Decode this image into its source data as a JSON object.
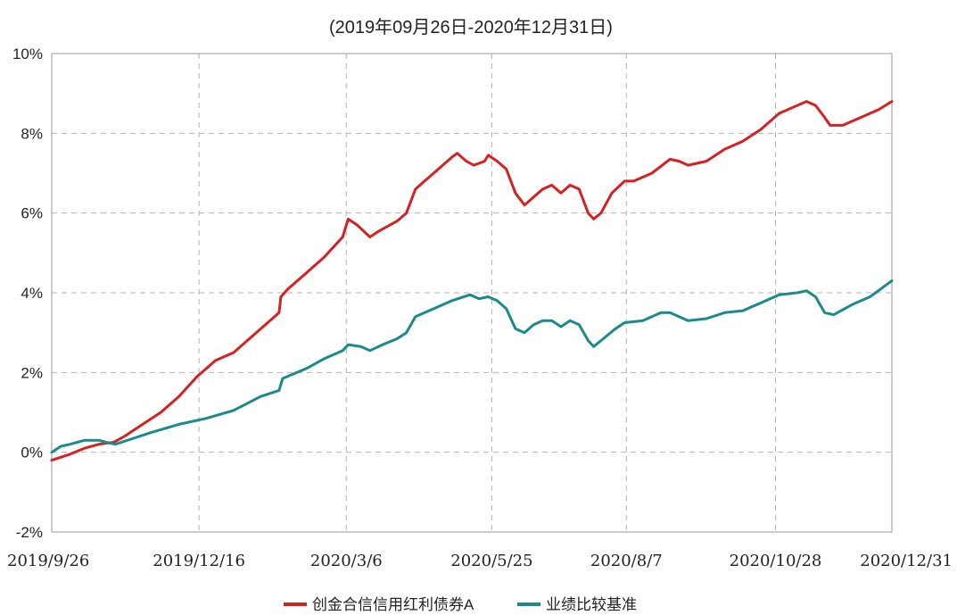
{
  "chart_data": {
    "type": "line",
    "title": "(2019年09月26日-2020年12月31日)",
    "xlabel": "",
    "ylabel": "",
    "ylim": [
      -2,
      10
    ],
    "y_ticks": [
      "10%",
      "8%",
      "6%",
      "4%",
      "2%",
      "0%",
      "-2%"
    ],
    "y_tick_values": [
      10,
      8,
      6,
      4,
      2,
      0,
      -2
    ],
    "x_ticks": [
      "2019/9/26",
      "2019/12/16",
      "2020/3/6",
      "2020/5/25",
      "2020/8/7",
      "2020/10/28",
      "2020/12/31"
    ],
    "x_tick_days": [
      0,
      81,
      162,
      242,
      316,
      398,
      462
    ],
    "x_range_days": [
      0,
      462
    ],
    "grid": true,
    "legend_position": "bottom",
    "series": [
      {
        "name": "创金合信信用红利债券A",
        "color": "#d62022",
        "points": [
          [
            0,
            -0.2
          ],
          [
            10,
            -0.05
          ],
          [
            18,
            0.1
          ],
          [
            26,
            0.2
          ],
          [
            34,
            0.25
          ],
          [
            40,
            0.4
          ],
          [
            50,
            0.7
          ],
          [
            60,
            1.0
          ],
          [
            70,
            1.4
          ],
          [
            80,
            1.9
          ],
          [
            85,
            2.1
          ],
          [
            90,
            2.3
          ],
          [
            100,
            2.5
          ],
          [
            110,
            2.9
          ],
          [
            120,
            3.3
          ],
          [
            125,
            3.5
          ],
          [
            126,
            3.9
          ],
          [
            130,
            4.1
          ],
          [
            140,
            4.5
          ],
          [
            150,
            4.9
          ],
          [
            160,
            5.4
          ],
          [
            163,
            5.85
          ],
          [
            168,
            5.7
          ],
          [
            175,
            5.4
          ],
          [
            180,
            5.55
          ],
          [
            190,
            5.8
          ],
          [
            195,
            6.0
          ],
          [
            200,
            6.6
          ],
          [
            205,
            6.8
          ],
          [
            210,
            7.0
          ],
          [
            215,
            7.2
          ],
          [
            220,
            7.4
          ],
          [
            223,
            7.5
          ],
          [
            228,
            7.3
          ],
          [
            232,
            7.2
          ],
          [
            238,
            7.3
          ],
          [
            240,
            7.45
          ],
          [
            245,
            7.3
          ],
          [
            250,
            7.1
          ],
          [
            255,
            6.5
          ],
          [
            260,
            6.2
          ],
          [
            265,
            6.4
          ],
          [
            270,
            6.6
          ],
          [
            275,
            6.7
          ],
          [
            280,
            6.5
          ],
          [
            285,
            6.7
          ],
          [
            290,
            6.6
          ],
          [
            295,
            6.0
          ],
          [
            298,
            5.85
          ],
          [
            302,
            6.0
          ],
          [
            308,
            6.5
          ],
          [
            315,
            6.8
          ],
          [
            320,
            6.8
          ],
          [
            330,
            7.0
          ],
          [
            340,
            7.35
          ],
          [
            345,
            7.3
          ],
          [
            350,
            7.2
          ],
          [
            360,
            7.3
          ],
          [
            370,
            7.6
          ],
          [
            380,
            7.8
          ],
          [
            390,
            8.1
          ],
          [
            400,
            8.5
          ],
          [
            410,
            8.7
          ],
          [
            415,
            8.8
          ],
          [
            420,
            8.7
          ],
          [
            425,
            8.4
          ],
          [
            428,
            8.2
          ],
          [
            435,
            8.2
          ],
          [
            445,
            8.4
          ],
          [
            455,
            8.6
          ],
          [
            462,
            8.8
          ]
        ]
      },
      {
        "name": "业绩比较基准",
        "color": "#1a8a8a",
        "points": [
          [
            0,
            0.0
          ],
          [
            5,
            0.15
          ],
          [
            10,
            0.2
          ],
          [
            18,
            0.3
          ],
          [
            26,
            0.3
          ],
          [
            30,
            0.25
          ],
          [
            35,
            0.2
          ],
          [
            45,
            0.35
          ],
          [
            55,
            0.5
          ],
          [
            70,
            0.7
          ],
          [
            85,
            0.85
          ],
          [
            100,
            1.05
          ],
          [
            115,
            1.4
          ],
          [
            125,
            1.55
          ],
          [
            127,
            1.85
          ],
          [
            140,
            2.1
          ],
          [
            150,
            2.35
          ],
          [
            160,
            2.55
          ],
          [
            163,
            2.7
          ],
          [
            170,
            2.65
          ],
          [
            175,
            2.55
          ],
          [
            182,
            2.7
          ],
          [
            190,
            2.85
          ],
          [
            195,
            3.0
          ],
          [
            200,
            3.4
          ],
          [
            210,
            3.6
          ],
          [
            220,
            3.8
          ],
          [
            230,
            3.95
          ],
          [
            235,
            3.85
          ],
          [
            240,
            3.9
          ],
          [
            245,
            3.8
          ],
          [
            250,
            3.6
          ],
          [
            255,
            3.1
          ],
          [
            260,
            3.0
          ],
          [
            265,
            3.2
          ],
          [
            270,
            3.3
          ],
          [
            275,
            3.3
          ],
          [
            280,
            3.15
          ],
          [
            285,
            3.3
          ],
          [
            290,
            3.2
          ],
          [
            295,
            2.8
          ],
          [
            298,
            2.65
          ],
          [
            302,
            2.8
          ],
          [
            310,
            3.1
          ],
          [
            315,
            3.25
          ],
          [
            325,
            3.3
          ],
          [
            335,
            3.5
          ],
          [
            340,
            3.5
          ],
          [
            350,
            3.3
          ],
          [
            360,
            3.35
          ],
          [
            370,
            3.5
          ],
          [
            380,
            3.55
          ],
          [
            390,
            3.75
          ],
          [
            400,
            3.95
          ],
          [
            410,
            4.0
          ],
          [
            415,
            4.05
          ],
          [
            420,
            3.9
          ],
          [
            425,
            3.5
          ],
          [
            430,
            3.45
          ],
          [
            440,
            3.7
          ],
          [
            450,
            3.9
          ],
          [
            462,
            4.3
          ]
        ]
      }
    ]
  }
}
